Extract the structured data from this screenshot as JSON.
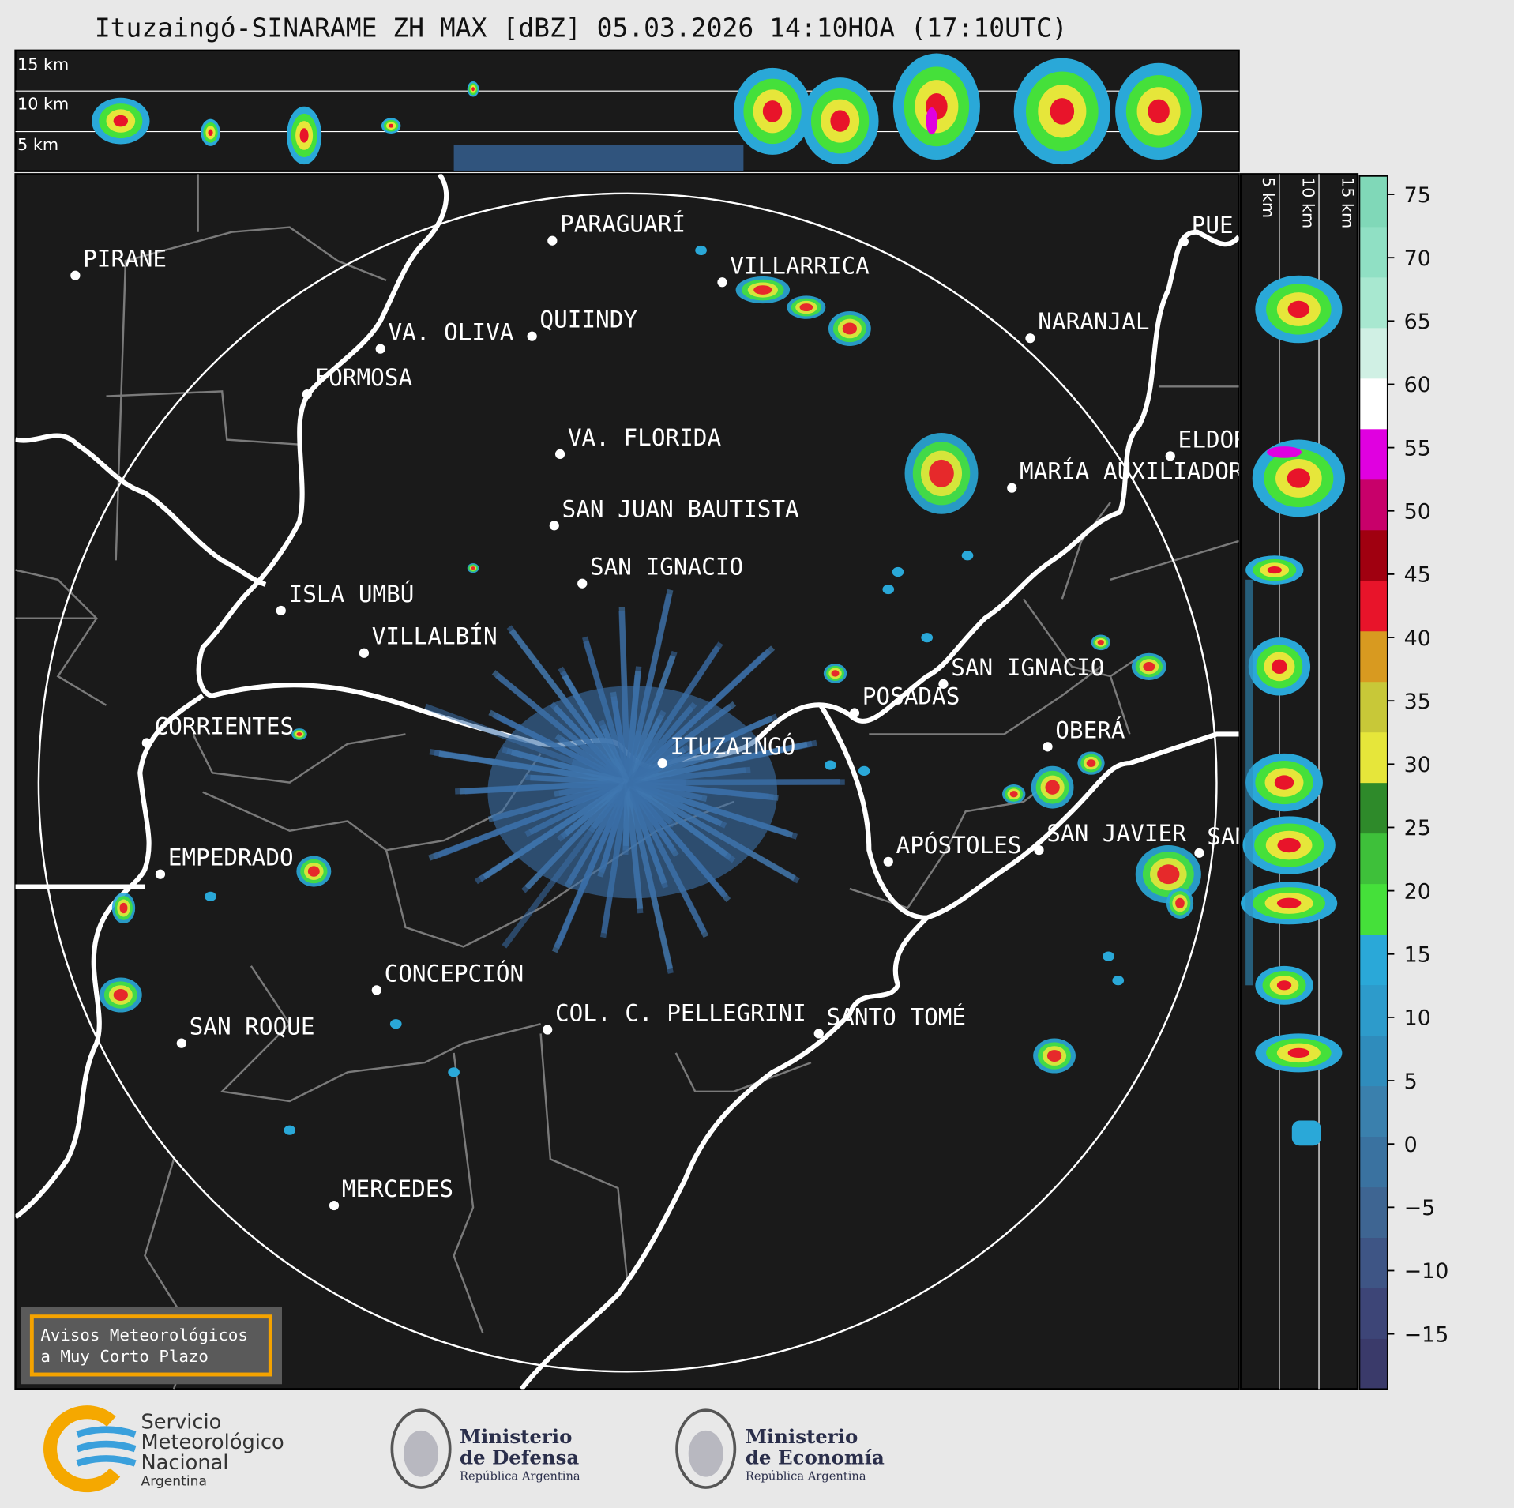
{
  "title": "Ituzaingó-SINARAME ZH MAX [dBZ] 05.03.2026 14:10HOA (17:10UTC)",
  "cross_section_top": {
    "labels": [
      "15 km",
      "10 km",
      "5 km"
    ]
  },
  "cross_section_right": {
    "labels": [
      "5 km",
      "10 km",
      "15 km"
    ]
  },
  "cities": [
    {
      "name": "PARAGUARÍ"
    },
    {
      "name": "PIRANE"
    },
    {
      "name": "VILLARRICA"
    },
    {
      "name": "QUIINDY"
    },
    {
      "name": "VA. OLIVA"
    },
    {
      "name": "NARANJAL"
    },
    {
      "name": "FORMOSA"
    },
    {
      "name": "VA. FLORIDA"
    },
    {
      "name": "ELDORADO"
    },
    {
      "name": "MARÍA AUXILIADORA"
    },
    {
      "name": "SAN JUAN BAUTISTA"
    },
    {
      "name": "SAN IGNACIO"
    },
    {
      "name": "ISLA UMBÚ"
    },
    {
      "name": "VILLALBÍN"
    },
    {
      "name": "SAN IGNACIO"
    },
    {
      "name": "POSADAS"
    },
    {
      "name": "CORRIENTES"
    },
    {
      "name": "ITUZAINGÓ"
    },
    {
      "name": "OBERÁ"
    },
    {
      "name": "APÓSTOLES"
    },
    {
      "name": "SAN JAVIER"
    },
    {
      "name": "SAN"
    },
    {
      "name": "EMPEDRADO"
    },
    {
      "name": "CONCEPCIÓN"
    },
    {
      "name": "COL. C. PELLEGRINI"
    },
    {
      "name": "SANTO TOMÉ"
    },
    {
      "name": "SAN ROQUE"
    },
    {
      "name": "MERCEDES"
    },
    {
      "name": "PUE"
    }
  ],
  "colorbar": {
    "range": [
      -19.35,
      76.45
    ],
    "ticks": [
      75,
      70,
      65,
      60,
      55,
      50,
      45,
      40,
      35,
      30,
      25,
      20,
      15,
      10,
      5,
      0,
      {
        "value": -5,
        "label": "−5"
      },
      {
        "value": -10,
        "label": "−10"
      },
      {
        "value": -15,
        "label": "−15"
      }
    ],
    "colors": [
      "#3a3a6a",
      "#3d4577",
      "#3e5585",
      "#3e6592",
      "#3a72a0",
      "#3a80ad",
      "#2f8cbc",
      "#2d9bcb",
      "#2aa8d8",
      "#45e03a",
      "#3ec03a",
      "#2e8a2a",
      "#e6e63a",
      "#c8c838",
      "#d89a20",
      "#e8142a",
      "#a00010",
      "#c8006a",
      "#e000e0",
      "#ffffff",
      "#d0f0e4",
      "#a8e8d0",
      "#90e0c4",
      "#80d8b8"
    ]
  },
  "notice": {
    "lines": [
      "Avisos Meteorológicos",
      "a Muy Corto Plazo"
    ]
  },
  "logos": [
    {
      "lines": [
        "Servicio",
        "Meteorológico",
        "Nacional",
        "Argentina"
      ]
    },
    {
      "lines": [
        "Ministerio",
        "de Defensa",
        "República Argentina"
      ]
    },
    {
      "lines": [
        "Ministerio",
        "de Economía",
        "República Argentina"
      ]
    }
  ]
}
